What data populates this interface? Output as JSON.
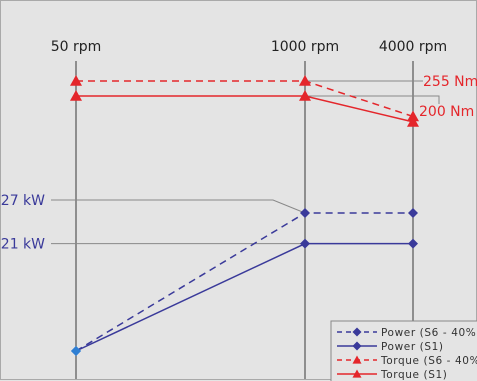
{
  "chart_data": {
    "type": "line",
    "x": [
      "50 rpm",
      "1000 rpm",
      "4000 rpm"
    ],
    "series": [
      {
        "name": "Power (S6 - 40%)",
        "unit": "kW",
        "values": [
          0,
          27,
          27
        ],
        "color": "#3a3a9a",
        "dash": true,
        "marker": "diamond"
      },
      {
        "name": "Power (S1)",
        "unit": "kW",
        "values": [
          0,
          21,
          21
        ],
        "color": "#3a3a9a",
        "dash": false,
        "marker": "diamond"
      },
      {
        "name": "Torque (S6 - 40%)",
        "unit": "Nm",
        "values": [
          255,
          255,
          125
        ],
        "color": "#e4262b",
        "dash": true,
        "marker": "triangle"
      },
      {
        "name": "Torque (S1)",
        "unit": "Nm",
        "values": [
          200,
          200,
          105
        ],
        "color": "#e4262b",
        "dash": false,
        "marker": "triangle"
      }
    ],
    "torque_labels": [
      "255 Nm",
      "200 Nm"
    ],
    "power_labels": [
      "27 kW",
      "21 kW"
    ],
    "legend_position": "bottom-right",
    "grid": false
  },
  "colors": {
    "background": "#e4e4e4",
    "axis_line": "#555555",
    "leader_line": "#888888",
    "power": "#3a3a9a",
    "torque": "#e4262b",
    "origin_marker": "#2f7fd3"
  }
}
